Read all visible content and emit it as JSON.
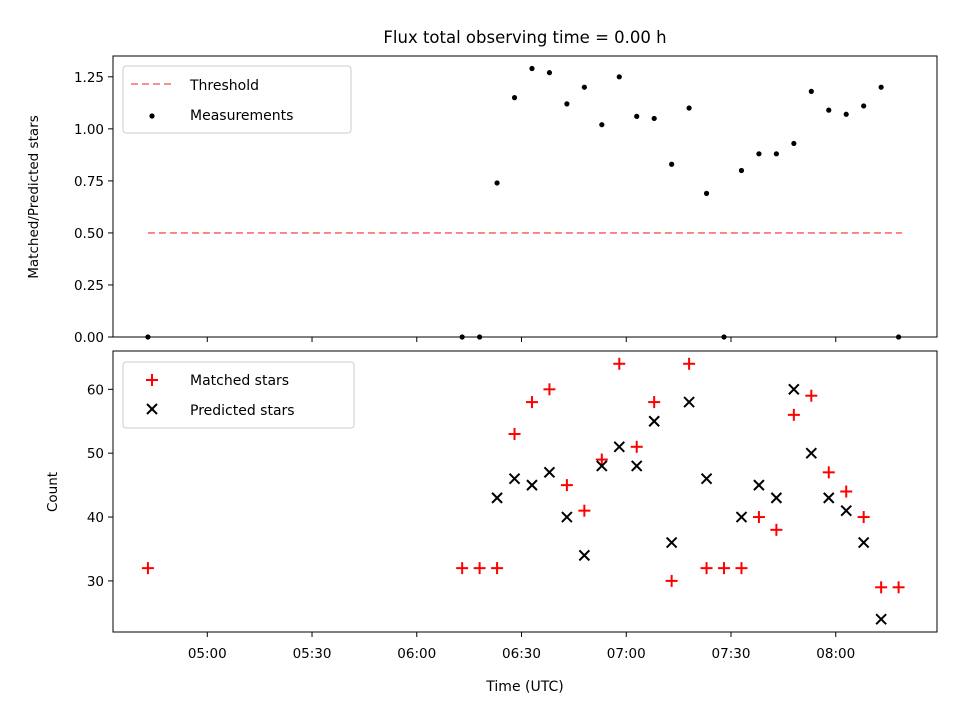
{
  "title": "Flux total observing time = 0.00 h",
  "xlabel": "Time (UTC)",
  "xticks": [
    "05:00",
    "05:30",
    "06:00",
    "06:30",
    "07:00",
    "07:30",
    "08:00"
  ],
  "colors": {
    "threshold": "#ff7f7f",
    "measurements": "#000000",
    "matched": "#ff0000",
    "predicted": "#000000"
  },
  "chart_data": [
    {
      "type": "scatter",
      "ylabel": "Matched/Predicted stars",
      "ylim": [
        0,
        1.35
      ],
      "yticks": [
        "0.00",
        "0.25",
        "0.50",
        "0.75",
        "1.00",
        "1.25"
      ],
      "xlim": [
        "04:33",
        "08:29"
      ],
      "legend_position": "top-left",
      "threshold": {
        "name": "Threshold",
        "value": 0.5,
        "x_start": "04:43",
        "x_end": "08:19"
      },
      "series": [
        {
          "name": "Measurements",
          "x": [
            "04:43",
            "06:13",
            "06:18",
            "06:23",
            "06:28",
            "06:33",
            "06:38",
            "06:43",
            "06:48",
            "06:53",
            "06:58",
            "07:03",
            "07:08",
            "07:13",
            "07:18",
            "07:23",
            "07:28",
            "07:33",
            "07:38",
            "07:43",
            "07:48",
            "07:53",
            "07:58",
            "08:03",
            "08:08",
            "08:13",
            "08:18"
          ],
          "y": [
            0.0,
            0.0,
            0.0,
            0.74,
            1.15,
            1.29,
            1.27,
            1.12,
            1.2,
            1.02,
            1.25,
            1.06,
            1.05,
            0.83,
            1.1,
            0.69,
            0.0,
            0.8,
            0.88,
            0.88,
            0.93,
            1.18,
            1.09,
            1.07,
            1.11,
            1.2,
            0.0
          ]
        }
      ]
    },
    {
      "type": "scatter",
      "ylabel": "Count",
      "ylim": [
        22,
        66
      ],
      "yticks": [
        "30",
        "40",
        "50",
        "60"
      ],
      "xlim": [
        "04:33",
        "08:29"
      ],
      "legend_position": "top-left",
      "series": [
        {
          "name": "Matched stars",
          "marker": "+",
          "x": [
            "04:43",
            "06:13",
            "06:18",
            "06:23",
            "06:28",
            "06:33",
            "06:38",
            "06:43",
            "06:48",
            "06:53",
            "06:58",
            "07:03",
            "07:08",
            "07:13",
            "07:18",
            "07:23",
            "07:28",
            "07:33",
            "07:38",
            "07:43",
            "07:48",
            "07:53",
            "07:58",
            "08:03",
            "08:08",
            "08:13",
            "08:18"
          ],
          "y": [
            32,
            32,
            32,
            32,
            53,
            58,
            60,
            45,
            41,
            49,
            64,
            51,
            58,
            30,
            64,
            32,
            32,
            32,
            40,
            38,
            56,
            59,
            47,
            44,
            40,
            29,
            29
          ]
        },
        {
          "name": "Predicted stars",
          "marker": "x",
          "x": [
            "06:23",
            "06:28",
            "06:33",
            "06:38",
            "06:43",
            "06:48",
            "06:53",
            "06:58",
            "07:03",
            "07:08",
            "07:13",
            "07:18",
            "07:23",
            "07:33",
            "07:38",
            "07:43",
            "07:48",
            "07:53",
            "07:58",
            "08:03",
            "08:08",
            "08:13"
          ],
          "y": [
            43,
            46,
            45,
            47,
            40,
            34,
            48,
            51,
            48,
            55,
            36,
            58,
            46,
            40,
            45,
            43,
            60,
            50,
            43,
            41,
            36,
            24
          ]
        }
      ]
    }
  ]
}
